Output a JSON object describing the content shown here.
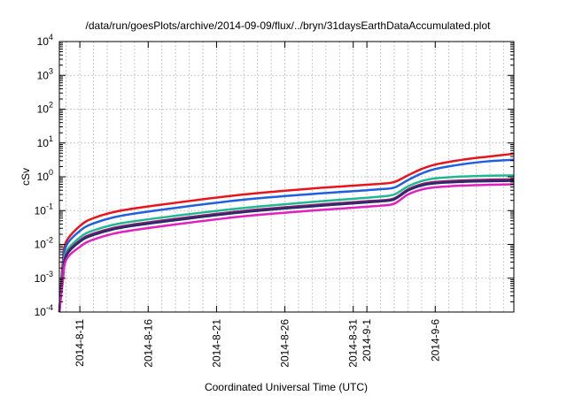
{
  "chart_data": {
    "type": "line",
    "title": "/data/run/goesPlots/archive/2014-09-09/flux/../bryn/31daysEarthDataAccumulated.plot",
    "xlabel": "Coordinated Universal Time (UTC)",
    "ylabel": "cSv",
    "y_scale": "log",
    "ylim": [
      0.0001,
      10000
    ],
    "xlim": [
      "2014-08-09T12:00",
      "2014-09-11T18:00"
    ],
    "grid": true,
    "legend": "none",
    "x_ticks": [
      "2014-8-11",
      "2014-8-16",
      "2014-8-21",
      "2014-8-26",
      "2014-8-31",
      "2014-9-1",
      "2014-9-6"
    ],
    "y_ticks": [
      {
        "base": "10",
        "exp": "-4",
        "value": 0.0001
      },
      {
        "base": "10",
        "exp": "-3",
        "value": 0.001
      },
      {
        "base": "10",
        "exp": "-2",
        "value": 0.01
      },
      {
        "base": "10",
        "exp": "-1",
        "value": 0.1
      },
      {
        "base": "10",
        "exp": "0",
        "value": 1
      },
      {
        "base": "10",
        "exp": "1",
        "value": 10
      },
      {
        "base": "10",
        "exp": "2",
        "value": 100
      },
      {
        "base": "10",
        "exp": "3",
        "value": 1000
      },
      {
        "base": "10",
        "exp": "4",
        "value": 10000
      }
    ],
    "x": [
      "2014-08-09T12:00",
      "2014-08-09T18:00",
      "2014-08-10T00:00",
      "2014-08-11T00:00",
      "2014-08-12T00:00",
      "2014-08-14T00:00",
      "2014-08-18T00:00",
      "2014-08-23T00:00",
      "2014-08-28T00:00",
      "2014-09-01T00:00",
      "2014-09-02T00:00",
      "2014-09-03T00:00",
      "2014-09-04T00:00",
      "2014-09-05T00:00",
      "2014-09-06T00:00",
      "2014-09-08T00:00",
      "2014-09-10T00:00",
      "2014-09-11T18:00"
    ],
    "series": [
      {
        "color": "#e8141c",
        "values": [
          0.0001,
          0.003,
          0.012,
          0.035,
          0.06,
          0.1,
          0.17,
          0.3,
          0.45,
          0.58,
          0.62,
          0.7,
          1.1,
          1.7,
          2.3,
          3.2,
          4.0,
          4.8
        ]
      },
      {
        "color": "#1f5fe0",
        "values": [
          0.0001,
          0.002,
          0.009,
          0.025,
          0.042,
          0.07,
          0.12,
          0.21,
          0.31,
          0.4,
          0.43,
          0.48,
          0.8,
          1.25,
          1.7,
          2.35,
          2.9,
          3.2
        ]
      },
      {
        "color": "#20b890",
        "values": [
          0.0001,
          0.0015,
          0.006,
          0.016,
          0.026,
          0.042,
          0.07,
          0.12,
          0.18,
          0.24,
          0.26,
          0.3,
          0.52,
          0.75,
          0.9,
          1.02,
          1.08,
          1.1
        ]
      },
      {
        "color": "#8a1e6e",
        "values": [
          0.0001,
          0.0012,
          0.005,
          0.013,
          0.021,
          0.034,
          0.057,
          0.098,
          0.145,
          0.19,
          0.2,
          0.23,
          0.42,
          0.6,
          0.7,
          0.78,
          0.82,
          0.84
        ]
      },
      {
        "color": "#2a2a6a",
        "values": [
          0.0001,
          0.001,
          0.0045,
          0.012,
          0.019,
          0.031,
          0.052,
          0.09,
          0.133,
          0.175,
          0.187,
          0.215,
          0.39,
          0.55,
          0.64,
          0.71,
          0.74,
          0.76
        ]
      },
      {
        "color": "#e020c0",
        "values": [
          0.0001,
          0.0008,
          0.0035,
          0.0085,
          0.014,
          0.023,
          0.039,
          0.068,
          0.1,
          0.13,
          0.14,
          0.16,
          0.3,
          0.42,
          0.49,
          0.55,
          0.58,
          0.6
        ]
      }
    ]
  }
}
